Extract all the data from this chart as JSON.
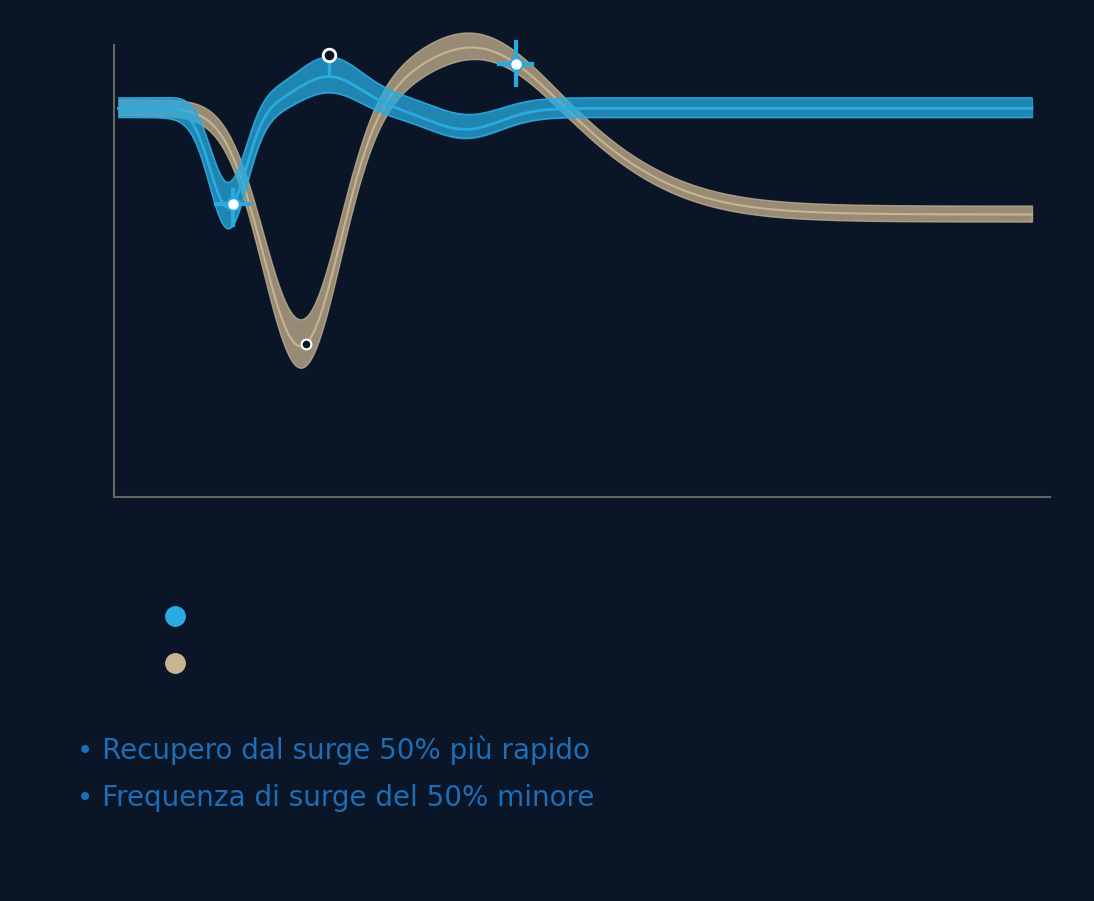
{
  "background_color": "#0a1628",
  "blue_color": "#29ABE2",
  "tan_color": "#C8B490",
  "bullet_text_color": "#1E6DB5",
  "legend_blue": "#29ABE2",
  "legend_tan": "#C8B490",
  "bullet1": "Recupero dal surge 50% più rapido",
  "bullet2": "Frequenza di surge del 50% minore",
  "font_size_bullets": 20,
  "axis_color": "#666666"
}
